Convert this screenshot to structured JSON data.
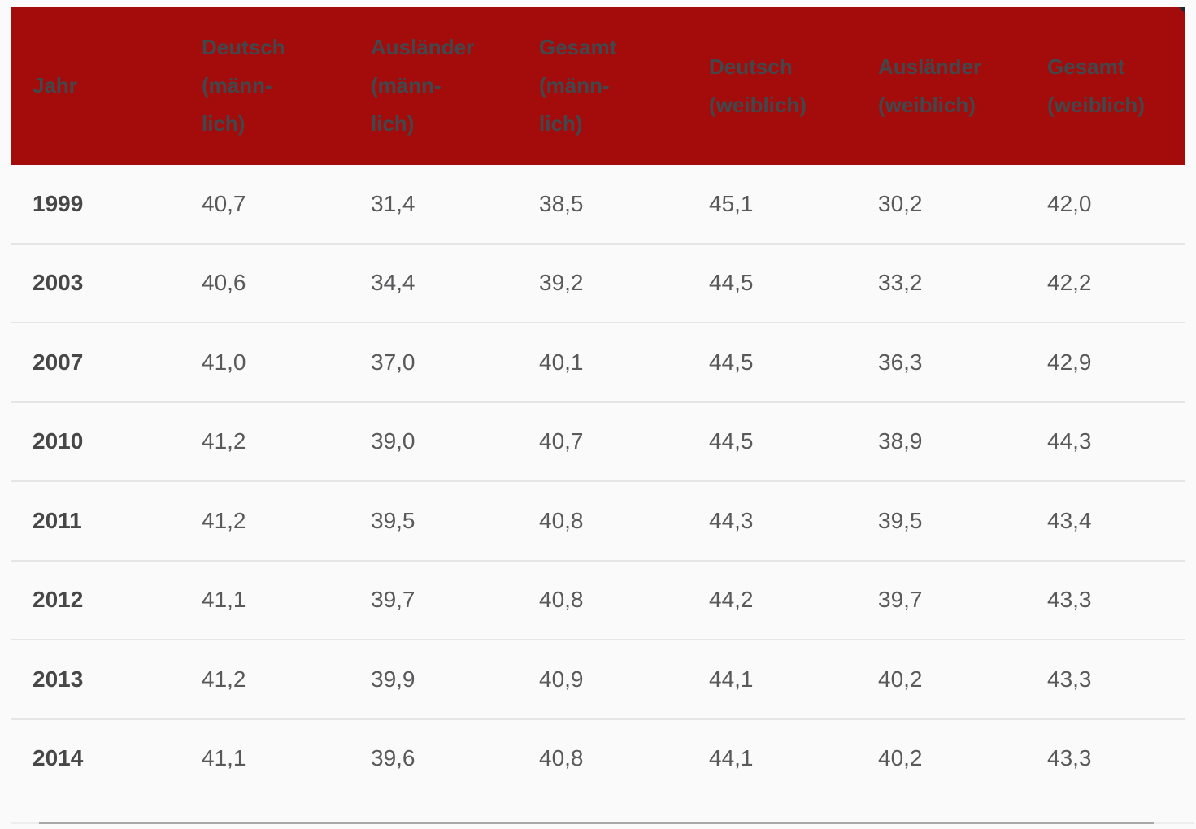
{
  "table": {
    "columns": [
      {
        "key": "jahr",
        "lines": [
          "Jahr"
        ]
      },
      {
        "key": "deutsch-maennlich",
        "lines": [
          "Deutsch",
          "(männ-",
          "lich)"
        ]
      },
      {
        "key": "auslaender-maennlich",
        "lines": [
          "Ausländer",
          "(männ-",
          "lich)"
        ]
      },
      {
        "key": "gesamt-maennlich",
        "lines": [
          "Gesamt",
          "(männ-",
          "lich)"
        ]
      },
      {
        "key": "deutsch-weiblich",
        "lines": [
          "Deutsch",
          "(weiblich)"
        ]
      },
      {
        "key": "auslaender-weiblich",
        "lines": [
          "Ausländer",
          "(weiblich)"
        ]
      },
      {
        "key": "gesamt-weiblich",
        "lines": [
          "Gesamt",
          "(weiblich)"
        ]
      }
    ],
    "rows": [
      {
        "year": "1999",
        "values": [
          "40,7",
          "31,4",
          "38,5",
          "45,1",
          "30,2",
          "42,0"
        ]
      },
      {
        "year": "2003",
        "values": [
          "40,6",
          "34,4",
          "39,2",
          "44,5",
          "33,2",
          "42,2"
        ]
      },
      {
        "year": "2007",
        "values": [
          "41,0",
          "37,0",
          "40,1",
          "44,5",
          "36,3",
          "42,9"
        ]
      },
      {
        "year": "2010",
        "values": [
          "41,2",
          "39,0",
          "40,7",
          "44,5",
          "38,9",
          "44,3"
        ]
      },
      {
        "year": "2011",
        "values": [
          "41,2",
          "39,5",
          "40,8",
          "44,3",
          "39,5",
          "43,4"
        ]
      },
      {
        "year": "2012",
        "values": [
          "41,1",
          "39,7",
          "40,8",
          "44,2",
          "39,7",
          "43,3"
        ]
      },
      {
        "year": "2013",
        "values": [
          "41,2",
          "39,9",
          "40,9",
          "44,1",
          "40,2",
          "43,3"
        ]
      },
      {
        "year": "2014",
        "values": [
          "41,1",
          "39,6",
          "40,8",
          "44,1",
          "40,2",
          "43,3"
        ]
      }
    ]
  },
  "chart_data": {
    "type": "table",
    "columns": [
      "Jahr",
      "Deutsch (männlich)",
      "Ausländer (männlich)",
      "Gesamt (männlich)",
      "Deutsch (weiblich)",
      "Ausländer (weiblich)",
      "Gesamt (weiblich)"
    ],
    "rows": [
      [
        "1999",
        "40,7",
        "31,4",
        "38,5",
        "45,1",
        "30,2",
        "42,0"
      ],
      [
        "2003",
        "40,6",
        "34,4",
        "39,2",
        "44,5",
        "33,2",
        "42,2"
      ],
      [
        "2007",
        "41,0",
        "37,0",
        "40,1",
        "44,5",
        "36,3",
        "42,9"
      ],
      [
        "2010",
        "41,2",
        "39,0",
        "40,7",
        "44,5",
        "38,9",
        "44,3"
      ],
      [
        "2011",
        "41,2",
        "39,5",
        "40,8",
        "44,3",
        "39,5",
        "43,4"
      ],
      [
        "2012",
        "41,1",
        "39,7",
        "40,8",
        "44,2",
        "39,7",
        "43,3"
      ],
      [
        "2013",
        "41,2",
        "39,9",
        "40,9",
        "44,1",
        "40,2",
        "43,3"
      ],
      [
        "2014",
        "41,1",
        "39,6",
        "40,8",
        "44,1",
        "40,2",
        "43,3"
      ]
    ]
  },
  "colors": {
    "page_bg": "#fbfafa",
    "header_bg": "#a40c0c",
    "header_text": "#42474b",
    "year_text": "#474747",
    "value_text": "#58595b",
    "divider": "#e6e4e4",
    "scrollbar_track": "#ededed",
    "scrollbar_thumb": "#a8a8a8",
    "corner_handle": "#222833"
  }
}
